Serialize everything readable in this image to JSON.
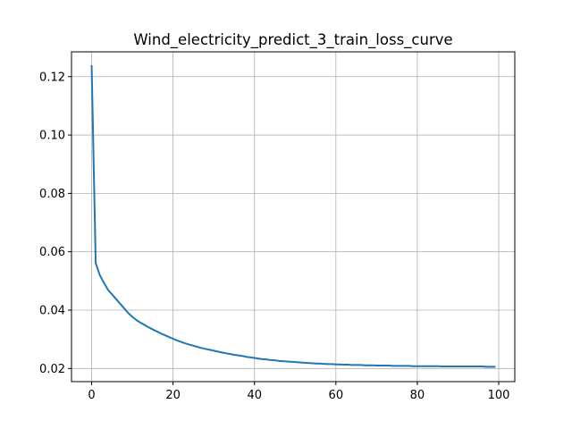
{
  "chart_data": {
    "type": "line",
    "title": "Wind_electricity_predict_3_train_loss_curve",
    "xlabel": "",
    "ylabel": "",
    "xlim": [
      -4.95,
      103.95
    ],
    "ylim": [
      0.0155,
      0.1285
    ],
    "grid": true,
    "x_ticks": [
      0,
      20,
      40,
      60,
      80,
      100
    ],
    "x_tick_labels": [
      "0",
      "20",
      "40",
      "60",
      "80",
      "100"
    ],
    "y_ticks": [
      0.02,
      0.04,
      0.06,
      0.08,
      0.1,
      0.12
    ],
    "y_tick_labels": [
      "0.02",
      "0.04",
      "0.06",
      "0.08",
      "0.10",
      "0.12"
    ],
    "series_color": "#1f77b4",
    "x": [
      0,
      1,
      2,
      3,
      4,
      5,
      6,
      7,
      8,
      9,
      10,
      11,
      12,
      13,
      14,
      15,
      16,
      17,
      18,
      19,
      20,
      21,
      22,
      23,
      24,
      25,
      26,
      27,
      28,
      29,
      30,
      31,
      32,
      33,
      34,
      35,
      36,
      37,
      38,
      39,
      40,
      41,
      42,
      43,
      44,
      45,
      46,
      47,
      48,
      49,
      50,
      51,
      52,
      53,
      54,
      55,
      56,
      57,
      58,
      59,
      60,
      61,
      62,
      63,
      64,
      65,
      66,
      67,
      68,
      69,
      70,
      71,
      72,
      73,
      74,
      75,
      76,
      77,
      78,
      79,
      80,
      81,
      82,
      83,
      84,
      85,
      86,
      87,
      88,
      89,
      90,
      91,
      92,
      93,
      94,
      95,
      96,
      97,
      98,
      99
    ],
    "y": [
      0.1236,
      0.0561,
      0.052,
      0.0494,
      0.047,
      0.0454,
      0.0438,
      0.0422,
      0.0406,
      0.039,
      0.0377,
      0.0366,
      0.0357,
      0.0349,
      0.0341,
      0.0334,
      0.0327,
      0.032,
      0.0314,
      0.0308,
      0.0302,
      0.0296,
      0.0291,
      0.0286,
      0.0282,
      0.0278,
      0.0274,
      0.027,
      0.0267,
      0.0264,
      0.0261,
      0.0258,
      0.0255,
      0.0252,
      0.025,
      0.0247,
      0.0245,
      0.0243,
      0.024,
      0.0238,
      0.0236,
      0.0234,
      0.0232,
      0.0231,
      0.0229,
      0.0228,
      0.0226,
      0.0225,
      0.0224,
      0.0223,
      0.0222,
      0.0221,
      0.022,
      0.0219,
      0.0218,
      0.0217,
      0.0217,
      0.0216,
      0.0215,
      0.0215,
      0.0214,
      0.0214,
      0.0213,
      0.0213,
      0.0212,
      0.0212,
      0.0212,
      0.0211,
      0.0211,
      0.0211,
      0.021,
      0.021,
      0.021,
      0.021,
      0.0209,
      0.0209,
      0.0209,
      0.0209,
      0.0209,
      0.0208,
      0.0208,
      0.0208,
      0.0208,
      0.0208,
      0.0208,
      0.0208,
      0.0207,
      0.0207,
      0.0207,
      0.0207,
      0.0207,
      0.0207,
      0.0207,
      0.0207,
      0.0207,
      0.0207,
      0.0207,
      0.0206,
      0.0206,
      0.0206
    ]
  }
}
